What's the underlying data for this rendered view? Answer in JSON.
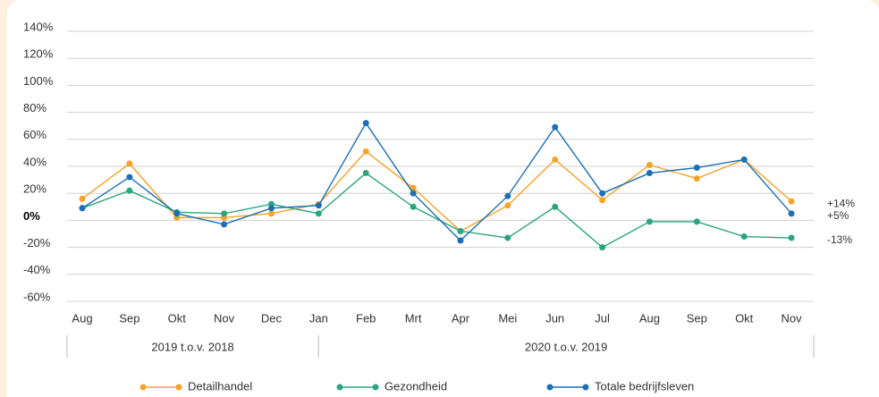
{
  "chart_data": {
    "type": "line",
    "categories": [
      "Aug",
      "Sep",
      "Okt",
      "Nov",
      "Dec",
      "Jan",
      "Feb",
      "Mrt",
      "Apr",
      "Mei",
      "Jun",
      "Jul",
      "Aug",
      "Sep",
      "Okt",
      "Nov"
    ],
    "group_labels": [
      "2019 t.o.v. 2018",
      "2020 t.o.v. 2019"
    ],
    "series": [
      {
        "name": "Detailhandel",
        "color": "#f5a32a",
        "values": [
          16,
          42,
          2,
          2,
          5,
          12,
          51,
          24,
          -8,
          11,
          45,
          15,
          41,
          31,
          45,
          14
        ],
        "value_labels": [
          null,
          null,
          null,
          null,
          null,
          null,
          null,
          null,
          null,
          null,
          null,
          null,
          null,
          null,
          null,
          "+14%"
        ]
      },
      {
        "name": "Gezondheid",
        "color": "#2ba57f",
        "values": [
          9,
          22,
          6,
          5,
          12,
          5,
          35,
          10,
          -8,
          -13,
          10,
          -20,
          -1,
          -1,
          -12,
          -13
        ],
        "value_labels": [
          null,
          null,
          null,
          null,
          null,
          null,
          null,
          null,
          null,
          null,
          null,
          null,
          null,
          null,
          null,
          "-13%"
        ]
      },
      {
        "name": "Totale bedrijfsleven",
        "color": "#1a6fb5",
        "values": [
          9,
          32,
          5,
          -3,
          9,
          11,
          72,
          20,
          -15,
          18,
          69,
          20,
          35,
          39,
          45,
          5
        ],
        "value_labels": [
          null,
          null,
          null,
          null,
          null,
          null,
          null,
          null,
          null,
          null,
          null,
          null,
          null,
          null,
          null,
          "+5%"
        ]
      }
    ],
    "ylim": [
      -60,
      140
    ],
    "yticks": [
      {
        "value": -60,
        "label": "-60%"
      },
      {
        "value": -40,
        "label": "-40%"
      },
      {
        "value": -20,
        "label": "-20%"
      },
      {
        "value": 0,
        "label": "0%"
      },
      {
        "value": 20,
        "label": "20%"
      },
      {
        "value": 40,
        "label": "40%"
      },
      {
        "value": 60,
        "label": "60%"
      },
      {
        "value": 80,
        "label": "80%"
      },
      {
        "value": 100,
        "label": "100%"
      },
      {
        "value": 120,
        "label": "120%"
      },
      {
        "value": 140,
        "label": "140%"
      }
    ],
    "grid": true
  }
}
